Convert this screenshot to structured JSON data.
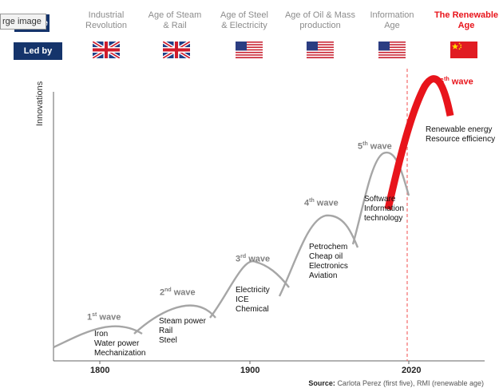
{
  "header": {
    "tooltip": "rge image",
    "row1_box_text": "e",
    "row2_label": "Led by"
  },
  "eras": [
    {
      "label": "Industrial\nRevolution",
      "flag": "uk-flag",
      "highlight": false
    },
    {
      "label": "Age of Steam\n& Rail",
      "flag": "uk-flag",
      "highlight": false
    },
    {
      "label": "Age of Steel\n& Electricity",
      "flag": "us-flag",
      "highlight": false
    },
    {
      "label": "Age of Oil & Mass\nproduction",
      "flag": "us-flag",
      "highlight": false
    },
    {
      "label": "Information\nAge",
      "flag": "us-flag",
      "highlight": false
    },
    {
      "label": "The Renewable\nAge",
      "flag": "china-flag",
      "highlight": true
    }
  ],
  "axis": {
    "y_label": "Innovations",
    "x_ticks": [
      "1800",
      "1900",
      "2020"
    ]
  },
  "waves": [
    {
      "ordinal": "1",
      "suffix": "st",
      "word": "wave",
      "description": "Iron\nWater power\nMechanization"
    },
    {
      "ordinal": "2",
      "suffix": "nd",
      "word": "wave",
      "description": "Steam power\nRail\nSteel"
    },
    {
      "ordinal": "3",
      "suffix": "rd",
      "word": "wave",
      "description": "Electricity\nICE\nChemical"
    },
    {
      "ordinal": "4",
      "suffix": "th",
      "word": "wave",
      "description": "Petrochem\nCheap oil\nElectronics\nAviation"
    },
    {
      "ordinal": "5",
      "suffix": "th",
      "word": "wave",
      "description": "Software\nInformation\ntechnology"
    },
    {
      "ordinal": "6",
      "suffix": "th",
      "word": "wave",
      "description": "Renewable energy\nResource efficiency"
    }
  ],
  "source": {
    "label": "Source:",
    "text": "Carlota  Perez (first five), RMI (renewable age)"
  },
  "colors": {
    "header_navy": "#15346b",
    "wave_gray": "#a6a6a6",
    "renewable_red": "#e8141b"
  }
}
